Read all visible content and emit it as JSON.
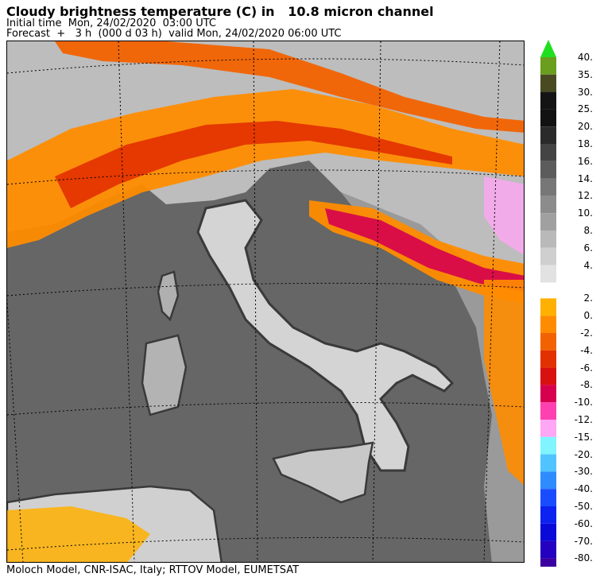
{
  "header": {
    "title": "Cloudy brightness temperature (C) in   10.8 micron channel",
    "initial_time": "Initial time  Mon, 24/02/2020  03:00 UTC",
    "forecast": "Forecast  +   3 h  (000 d 03 h)  valid Mon, 24/02/2020 06:00 UTC"
  },
  "footer": {
    "credits": "Moloch Model, CNR-ISAC, Italy; RTTOV Model, EUMETSAT"
  },
  "map": {
    "region": "Italy and central Mediterranean",
    "background_colors": {
      "sea_clear": "#666666",
      "land_clear": "#8c8c8c",
      "coast": "#3a3a3a",
      "graticule": "#000000"
    }
  },
  "legend": {
    "top_arrow_color": "#1fe01f",
    "bottom_arrow_color": "#3a00a0",
    "warm_bins": [
      {
        "label": "40.",
        "color": "#6a9e1e"
      },
      {
        "label": "35.",
        "color": "#4a4a22"
      },
      {
        "label": "30.",
        "color": "#141414"
      },
      {
        "label": "25.",
        "color": "#121212"
      },
      {
        "label": "20.",
        "color": "#2a2a2a"
      },
      {
        "label": "18.",
        "color": "#444444"
      },
      {
        "label": "16.",
        "color": "#5c5c5c"
      },
      {
        "label": "14.",
        "color": "#777777"
      },
      {
        "label": "12.",
        "color": "#8c8c8c"
      },
      {
        "label": "10.",
        "color": "#a0a0a0"
      },
      {
        "label": "8.",
        "color": "#b9b9b9"
      },
      {
        "label": "6.",
        "color": "#cfcfcf"
      },
      {
        "label": "4.",
        "color": "#e2e2e2"
      }
    ],
    "cold_bins": [
      {
        "label": "2.",
        "color": "#ffb000"
      },
      {
        "label": "0.",
        "color": "#ff8c00"
      },
      {
        "label": "-2.",
        "color": "#f26200"
      },
      {
        "label": "-4.",
        "color": "#e23000"
      },
      {
        "label": "-6.",
        "color": "#d81010"
      },
      {
        "label": "-8.",
        "color": "#d6004e"
      },
      {
        "label": "-10.",
        "color": "#ff40b0"
      },
      {
        "label": "-12.",
        "color": "#ffa6f4"
      },
      {
        "label": "-15.",
        "color": "#80f4ff"
      },
      {
        "label": "-20.",
        "color": "#50c4ff"
      },
      {
        "label": "-30.",
        "color": "#2e8cff"
      },
      {
        "label": "-40.",
        "color": "#1a4cff"
      },
      {
        "label": "-50.",
        "color": "#0c22f0"
      },
      {
        "label": "-60.",
        "color": "#0a0ad8"
      },
      {
        "label": "-70.",
        "color": "#2400c0"
      },
      {
        "label": "-80.",
        "color": "#3a00a0"
      }
    ]
  }
}
